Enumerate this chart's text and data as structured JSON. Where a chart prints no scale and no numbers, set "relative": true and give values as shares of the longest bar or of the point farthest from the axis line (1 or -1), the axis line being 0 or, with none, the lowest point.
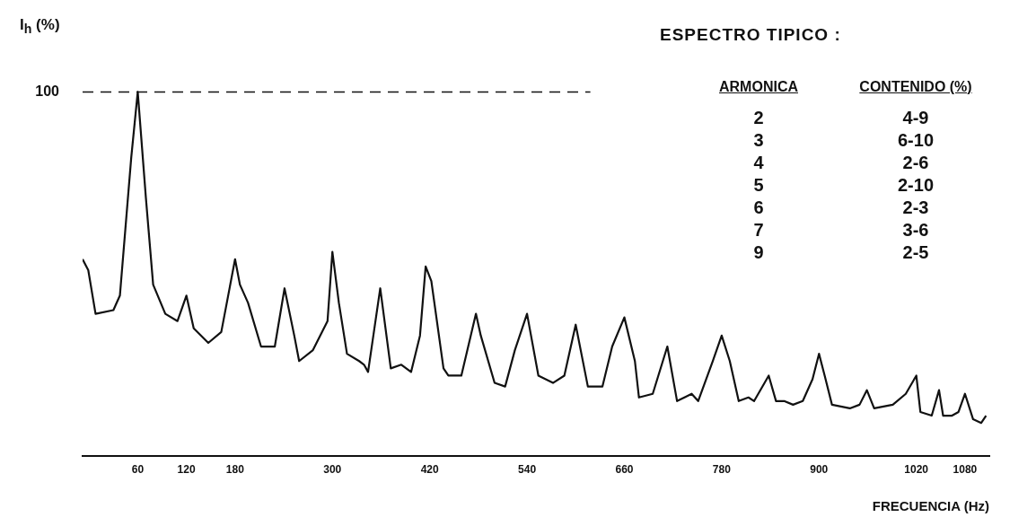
{
  "chart_data": {
    "type": "line",
    "relative": true,
    "title": "ESPECTRO TIPICO :",
    "ylabel": "I$_{h}$ (%)",
    "xlabel": "FRECUENCIA (Hz)",
    "xlim": [
      -8,
      1110
    ],
    "xticks": [
      60,
      120,
      180,
      300,
      420,
      540,
      660,
      780,
      900,
      1020,
      1080
    ],
    "grid": false,
    "legend": false,
    "marker": "none",
    "line_style": "solid",
    "ref_lines": [
      {
        "axis": "y",
        "value": 1,
        "label": "100",
        "line_style": "dashed"
      }
    ],
    "annotations": [
      "ARMONICA",
      "CONTENIDO (%)",
      "2",
      "4-9",
      "3",
      "6-10",
      "4",
      "2-6",
      "5",
      "2-10",
      "6",
      "2-3",
      "7",
      "3-6",
      "9",
      "2-5"
    ],
    "series": [
      {
        "color": "#111111",
        "x": [
          -8,
          -1,
          8,
          30,
          38,
          52,
          60,
          70,
          79,
          94,
          109,
          120,
          129,
          147,
          163,
          180,
          186,
          196,
          212,
          229,
          241,
          253,
          259,
          276,
          294,
          300,
          308,
          318,
          333,
          339,
          344,
          359,
          372,
          385,
          397,
          408,
          415,
          422,
          437,
          443,
          459,
          477,
          483,
          500,
          513,
          525,
          540,
          554,
          572,
          586,
          600,
          615,
          633,
          645,
          660,
          673,
          678,
          695,
          713,
          725,
          743,
          751,
          769,
          780,
          790,
          801,
          813,
          820,
          838,
          847,
          857,
          868,
          880,
          892,
          900,
          907,
          916,
          938,
          950,
          959,
          968,
          991,
          1007,
          1020,
          1025,
          1039,
          1048,
          1053,
          1064,
          1072,
          1080,
          1090,
          1100,
          1106
        ],
        "values": [
          0.54,
          0.51,
          0.39,
          0.4,
          0.44,
          0.82,
          1,
          0.71,
          0.47,
          0.39,
          0.37,
          0.44,
          0.35,
          0.31,
          0.34,
          0.54,
          0.47,
          0.42,
          0.3,
          0.3,
          0.46,
          0.33,
          0.26,
          0.29,
          0.37,
          0.56,
          0.42,
          0.28,
          0.26,
          0.25,
          0.23,
          0.46,
          0.24,
          0.25,
          0.23,
          0.33,
          0.52,
          0.48,
          0.24,
          0.22,
          0.22,
          0.39,
          0.33,
          0.2,
          0.19,
          0.29,
          0.39,
          0.22,
          0.2,
          0.22,
          0.36,
          0.19,
          0.19,
          0.3,
          0.38,
          0.26,
          0.16,
          0.17,
          0.3,
          0.15,
          0.17,
          0.15,
          0.26,
          0.33,
          0.26,
          0.15,
          0.16,
          0.15,
          0.22,
          0.15,
          0.15,
          0.14,
          0.15,
          0.21,
          0.28,
          0.22,
          0.14,
          0.13,
          0.14,
          0.18,
          0.13,
          0.14,
          0.17,
          0.22,
          0.12,
          0.11,
          0.18,
          0.11,
          0.11,
          0.12,
          0.17,
          0.1,
          0.09,
          0.11
        ]
      }
    ]
  }
}
